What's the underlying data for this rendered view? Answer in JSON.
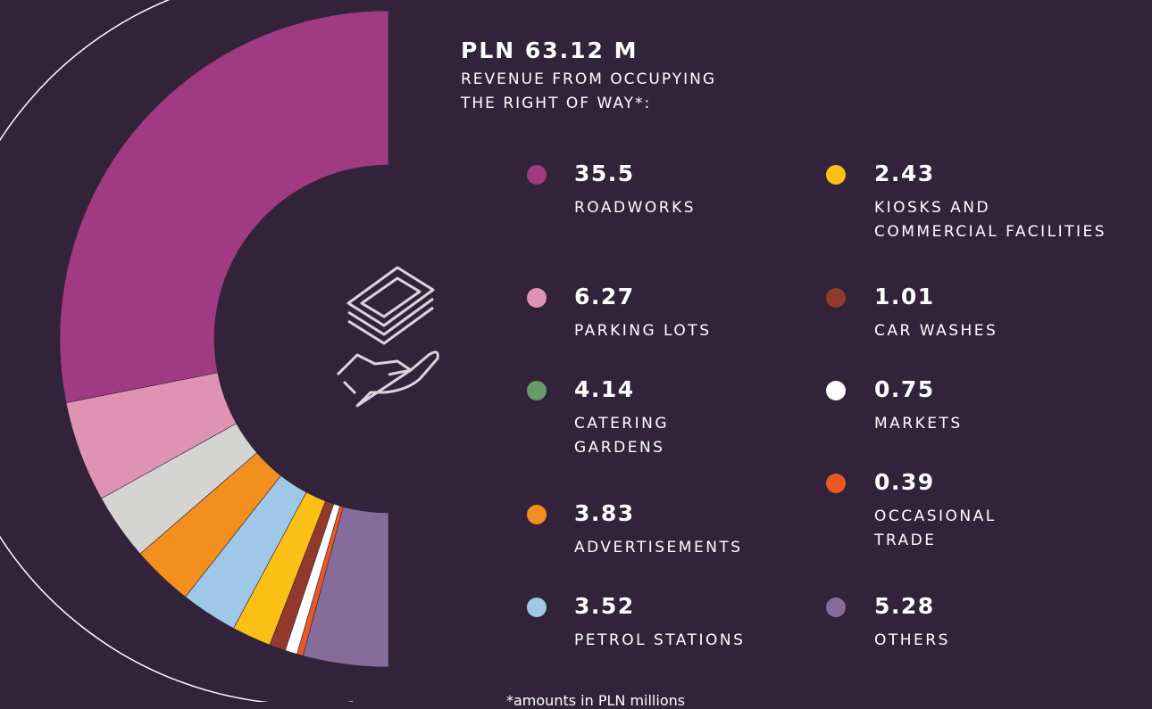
{
  "chart_data": {
    "type": "half-donut",
    "title": "PLN 63.12 M",
    "subtitle": "REVENUE FROM OCCUPYING\nTHE RIGHT OF WAY*:",
    "footnote": "*amounts in PLN millions",
    "categories": [
      "ROADWORKS",
      "PARKING LOTS",
      "CATERING\nGARDENS",
      "ADVERTISEMENTS",
      "PETROL STATIONS",
      "KIOSKS AND\nCOMMERCIAL FACILITIES",
      "CAR WASHES",
      "MARKETS",
      "OCCASIONAL\nTRADE",
      "OTHERS"
    ],
    "values": [
      35.5,
      6.27,
      4.14,
      3.83,
      3.52,
      2.43,
      1.01,
      0.75,
      0.39,
      5.28
    ],
    "colors": [
      "#a03a82",
      "#de93b3",
      "#6a9a6a",
      "#f28f1f",
      "#9fc7e8",
      "#fbbf15",
      "#93392b",
      "#ffffff",
      "#eb5725",
      "#866c9a"
    ],
    "segment_colors": [
      "#a03a82",
      "#de93b3",
      "#d4d4d2",
      "#f28f1f",
      "#9fc7e8",
      "#fbbf15",
      "#93392b",
      "#ffffff",
      "#eb5725",
      "#866c9a"
    ]
  }
}
